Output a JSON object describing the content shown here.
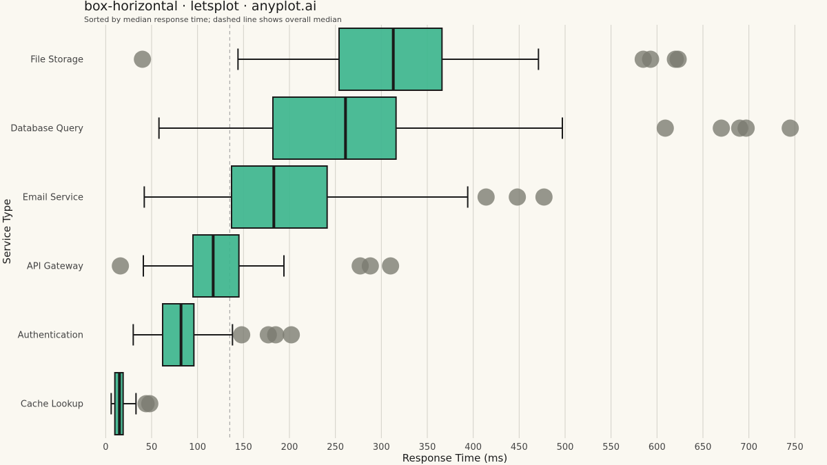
{
  "title": "box-horizontal · letsplot · anyplot.ai",
  "subtitle": "Sorted by median response time; dashed line shows overall median",
  "colors": {
    "background": "#FAF8F1",
    "box_fill": "#3DB58E",
    "box_stroke": "#1A1A1A",
    "outlier": "#7A7A70",
    "grid": "#D2D0C8",
    "median_line": "#999999"
  },
  "chart_data": {
    "type": "box",
    "orientation": "horizontal",
    "xlabel": "Response Time (ms)",
    "ylabel": "Service Type",
    "xlim": [
      -10,
      770
    ],
    "x_ticks": [
      0,
      50,
      100,
      150,
      200,
      250,
      300,
      350,
      400,
      450,
      500,
      550,
      600,
      650,
      700,
      750
    ],
    "grid": true,
    "overall_median": 135,
    "categories": [
      "File Storage",
      "Database Query",
      "Email Service",
      "API Gateway",
      "Authentication",
      "Cache Lookup"
    ],
    "boxes": [
      {
        "category": "File Storage",
        "whisker_low": 144,
        "q1": 254,
        "median": 313,
        "q3": 366,
        "whisker_high": 471,
        "outliers": [
          40,
          585,
          593,
          620,
          623
        ]
      },
      {
        "category": "Database Query",
        "whisker_low": 58,
        "q1": 182,
        "median": 261,
        "q3": 316,
        "whisker_high": 497,
        "outliers": [
          609,
          670,
          690,
          697,
          745
        ]
      },
      {
        "category": "Email Service",
        "whisker_low": 42,
        "q1": 137,
        "median": 183,
        "q3": 241,
        "whisker_high": 394,
        "outliers": [
          414,
          448,
          477
        ]
      },
      {
        "category": "API Gateway",
        "whisker_low": 41,
        "q1": 95,
        "median": 117,
        "q3": 145,
        "whisker_high": 194,
        "outliers": [
          16,
          277,
          288,
          310
        ]
      },
      {
        "category": "Authentication",
        "whisker_low": 30,
        "q1": 62,
        "median": 82,
        "q3": 96,
        "whisker_high": 138,
        "outliers": [
          148,
          177,
          185,
          202
        ]
      },
      {
        "category": "Cache Lookup",
        "whisker_low": 6,
        "q1": 10,
        "median": 15,
        "q3": 19,
        "whisker_high": 33,
        "outliers": [
          44,
          48
        ]
      }
    ]
  }
}
